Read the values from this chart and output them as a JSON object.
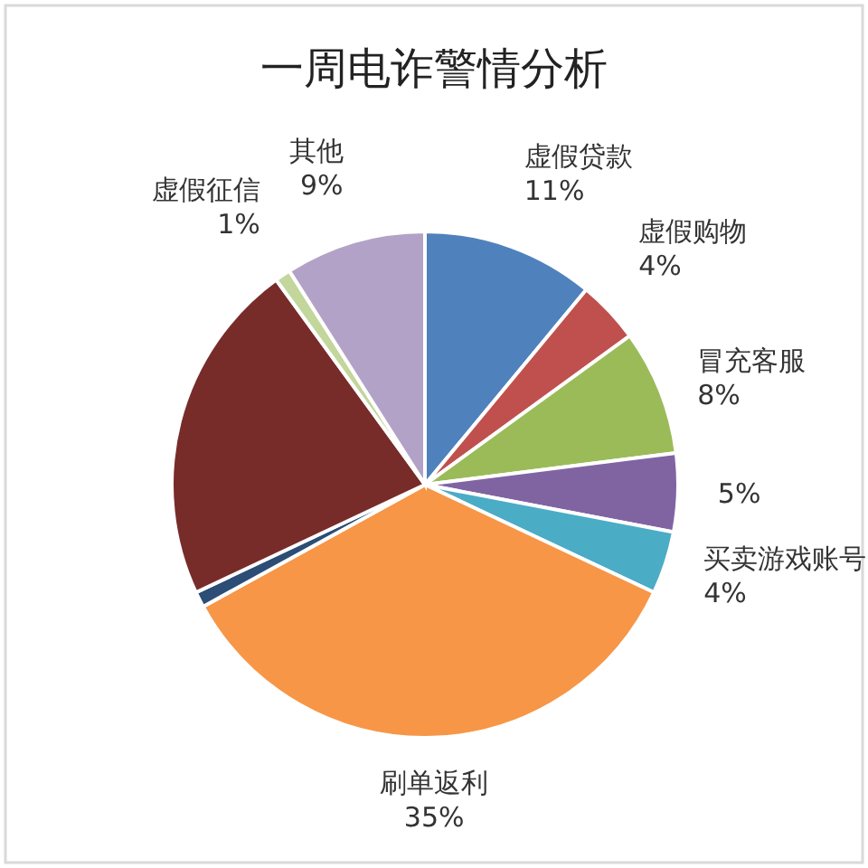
{
  "chart_data": {
    "type": "pie",
    "title": "一周电诈警情分析",
    "categories": [
      "虚假贷款",
      "虚假购物",
      "冒充客服",
      null,
      "买卖游戏账号",
      "刷单返利",
      null,
      null,
      "虚假征信",
      "其他"
    ],
    "values": [
      11,
      4,
      8,
      5,
      4,
      35,
      1,
      22,
      1,
      9
    ],
    "value_labels": [
      "11%",
      "4%",
      "8%",
      "5%",
      "4%",
      "35%",
      null,
      null,
      "1%",
      "9%"
    ],
    "colors": [
      "#4f81bd",
      "#c0504d",
      "#9bbb59",
      "#8064a2",
      "#4bacc6",
      "#f79646",
      "#2c4d75",
      "#772c2a",
      "#c3d69b",
      "#b3a2c7"
    ]
  }
}
